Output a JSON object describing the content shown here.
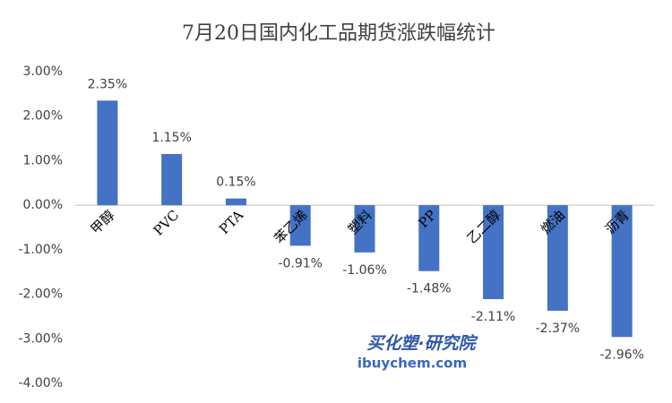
{
  "chart_data": {
    "type": "bar",
    "title": "7月20日国内化工品期货涨跌幅统计",
    "categories": [
      "甲醇",
      "PVC",
      "PTA",
      "苯乙烯",
      "塑料",
      "PP",
      "乙二醇",
      "燃油",
      "沥青"
    ],
    "values": [
      2.35,
      1.15,
      0.15,
      -0.91,
      -1.06,
      -1.48,
      -2.11,
      -2.37,
      -2.96
    ],
    "value_labels": [
      "2.35%",
      "1.15%",
      "0.15%",
      "-0.91%",
      "-1.06%",
      "-1.48%",
      "-2.11%",
      "-2.37%",
      "-2.96%"
    ],
    "color": "#4472c4",
    "ylim": [
      -4,
      3
    ],
    "yticks": [
      {
        "value": 3,
        "label": "3.00%"
      },
      {
        "value": 2,
        "label": "2.00%"
      },
      {
        "value": 1,
        "label": "1.00%"
      },
      {
        "value": 0,
        "label": "0.00%"
      },
      {
        "value": -1,
        "label": "-1.00%"
      },
      {
        "value": -2,
        "label": "-2.00%"
      },
      {
        "value": -3,
        "label": "-3.00%"
      },
      {
        "value": -4,
        "label": "-4.00%"
      }
    ],
    "grid": false,
    "watermark": [
      "买化塑·研究院",
      "ibuychem.com"
    ]
  }
}
